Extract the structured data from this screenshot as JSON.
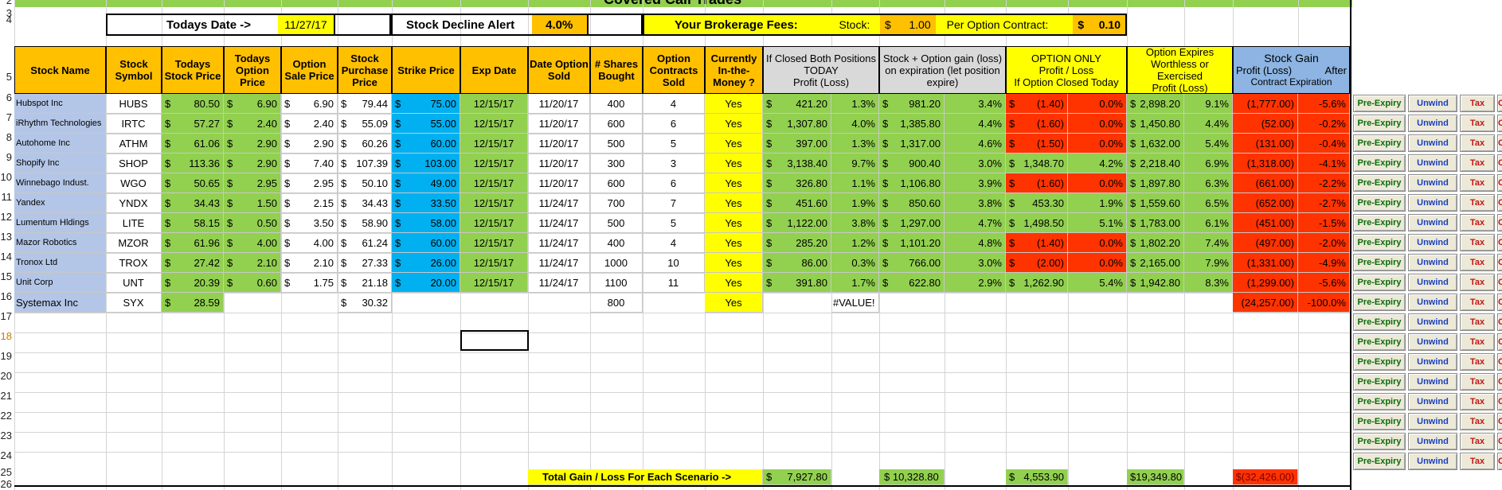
{
  "sheet_title": "Covered Call Trades",
  "top": {
    "todays_date_label": "Todays Date ->",
    "todays_date_value": "11/27/17",
    "decline_alert_label": "Stock Decline Alert",
    "decline_alert_value": "4.0%",
    "fees_label": "Your Brokerage Fees:",
    "stock_fee_label": "Stock:",
    "stock_fee_currency": "$",
    "stock_fee_value": "1.00",
    "option_fee_label": "Per Option Contract:",
    "option_fee_currency": "$",
    "option_fee_value": "0.10"
  },
  "row_numbers": [
    "2",
    "3",
    "4",
    "5",
    "6",
    "7",
    "8",
    "9",
    "10",
    "11",
    "12",
    "13",
    "14",
    "15",
    "16",
    "17",
    "18",
    "19",
    "20",
    "21",
    "22",
    "23",
    "24",
    "25",
    "26"
  ],
  "headers": {
    "stock_name": "Stock Name",
    "stock_symbol": "Stock Symbol",
    "todays_stock_price": "Todays Stock Price",
    "todays_option_price": "Todays Option Price",
    "option_sale_price": "Option Sale Price",
    "stock_purchase_price": "Stock Purchase Price",
    "strike_price": "Strike Price",
    "exp_date": "Exp Date",
    "date_option_sold": "Date Option Sold",
    "shares_bought": "# Shares Bought",
    "option_contracts_sold": "Option Contracts Sold",
    "currently_itm": "Currently In-the-Money ?",
    "closed_both_l1": "If Closed Both Positions",
    "closed_both_l2": "TODAY",
    "closed_both_l3": "Profit (Loss)",
    "stock_option_gain_l1": "Stock + Option gain (loss)",
    "stock_option_gain_l2": "on expiration (let position",
    "stock_option_gain_l3": "expire)",
    "option_only_l1": "OPTION ONLY",
    "option_only_l2": "Profit / Loss",
    "option_only_l3": "If Option Closed Today",
    "option_expires_l1": "Option Expires",
    "option_expires_l2": "Worthless or",
    "option_expires_l3": "Exercised",
    "option_expires_l4": "Profit (Loss)",
    "stock_gain_l1": "Stock Gain",
    "stock_gain_l2": "Profit (Loss)",
    "stock_gain_l2b": "After",
    "stock_gain_l3": "Contract Expiration"
  },
  "rows": [
    {
      "name": "Hubspot Inc",
      "sym": "HUBS",
      "tsp": "80.50",
      "top": "6.90",
      "osp": "6.90",
      "spp": "79.44",
      "strike": "75.00",
      "exp": "12/15/17",
      "sold": "11/20/17",
      "shares": "400",
      "contracts": "4",
      "itm": "Yes",
      "cb": "421.20",
      "cbp": "1.3%",
      "sog": "981.20",
      "sogp": "3.4%",
      "oo": "(1.40)",
      "oop": "0.0%",
      "oe": "2,898.20",
      "oep": "9.1%",
      "sg": "(1,777.00)",
      "sgp": "-5.6%",
      "oo_red": true
    },
    {
      "name": "iRhythm Technologies",
      "sym": "IRTC",
      "tsp": "57.27",
      "top": "2.40",
      "osp": "2.40",
      "spp": "55.09",
      "strike": "55.00",
      "exp": "12/15/17",
      "sold": "11/20/17",
      "shares": "600",
      "contracts": "6",
      "itm": "Yes",
      "cb": "1,307.80",
      "cbp": "4.0%",
      "sog": "1,385.80",
      "sogp": "4.4%",
      "oo": "(1.60)",
      "oop": "0.0%",
      "oe": "1,450.80",
      "oep": "4.4%",
      "sg": "(52.00)",
      "sgp": "-0.2%",
      "oo_red": true
    },
    {
      "name": "Autohome Inc",
      "sym": "ATHM",
      "tsp": "61.06",
      "top": "2.90",
      "osp": "2.90",
      "spp": "60.26",
      "strike": "60.00",
      "exp": "12/15/17",
      "sold": "11/20/17",
      "shares": "500",
      "contracts": "5",
      "itm": "Yes",
      "cb": "397.00",
      "cbp": "1.3%",
      "sog": "1,317.00",
      "sogp": "4.6%",
      "oo": "(1.50)",
      "oop": "0.0%",
      "oe": "1,632.00",
      "oep": "5.4%",
      "sg": "(131.00)",
      "sgp": "-0.4%",
      "oo_red": true
    },
    {
      "name": "Shopify Inc",
      "sym": "SHOP",
      "tsp": "113.36",
      "top": "2.90",
      "osp": "7.40",
      "spp": "107.39",
      "strike": "103.00",
      "exp": "12/15/17",
      "sold": "11/20/17",
      "shares": "300",
      "contracts": "3",
      "itm": "Yes",
      "cb": "3,138.40",
      "cbp": "9.7%",
      "sog": "900.40",
      "sogp": "3.0%",
      "oo": "1,348.70",
      "oop": "4.2%",
      "oe": "2,218.40",
      "oep": "6.9%",
      "sg": "(1,318.00)",
      "sgp": "-4.1%",
      "oo_red": false
    },
    {
      "name": "Winnebago Indust.",
      "sym": "WGO",
      "tsp": "50.65",
      "top": "2.95",
      "osp": "2.95",
      "spp": "50.10",
      "strike": "49.00",
      "exp": "12/15/17",
      "sold": "11/20/17",
      "shares": "600",
      "contracts": "6",
      "itm": "Yes",
      "cb": "326.80",
      "cbp": "1.1%",
      "sog": "1,106.80",
      "sogp": "3.9%",
      "oo": "(1.60)",
      "oop": "0.0%",
      "oe": "1,897.80",
      "oep": "6.3%",
      "sg": "(661.00)",
      "sgp": "-2.2%",
      "oo_red": true
    },
    {
      "name": "Yandex",
      "sym": "YNDX",
      "tsp": "34.43",
      "top": "1.50",
      "osp": "2.15",
      "spp": "34.43",
      "strike": "33.50",
      "exp": "12/15/17",
      "sold": "11/24/17",
      "shares": "700",
      "contracts": "7",
      "itm": "Yes",
      "cb": "451.60",
      "cbp": "1.9%",
      "sog": "850.60",
      "sogp": "3.8%",
      "oo": "453.30",
      "oop": "1.9%",
      "oe": "1,559.60",
      "oep": "6.5%",
      "sg": "(652.00)",
      "sgp": "-2.7%",
      "oo_red": false
    },
    {
      "name": "Lumentum Hldings",
      "sym": "LITE",
      "tsp": "58.15",
      "top": "0.50",
      "osp": "3.50",
      "spp": "58.90",
      "strike": "58.00",
      "exp": "12/15/17",
      "sold": "11/24/17",
      "shares": "500",
      "contracts": "5",
      "itm": "Yes",
      "cb": "1,122.00",
      "cbp": "3.8%",
      "sog": "1,297.00",
      "sogp": "4.7%",
      "oo": "1,498.50",
      "oop": "5.1%",
      "oe": "1,783.00",
      "oep": "6.1%",
      "sg": "(451.00)",
      "sgp": "-1.5%",
      "oo_red": false
    },
    {
      "name": "Mazor Robotics",
      "sym": "MZOR",
      "tsp": "61.96",
      "top": "4.00",
      "osp": "4.00",
      "spp": "61.24",
      "strike": "60.00",
      "exp": "12/15/17",
      "sold": "11/24/17",
      "shares": "400",
      "contracts": "4",
      "itm": "Yes",
      "cb": "285.20",
      "cbp": "1.2%",
      "sog": "1,101.20",
      "sogp": "4.8%",
      "oo": "(1.40)",
      "oop": "0.0%",
      "oe": "1,802.20",
      "oep": "7.4%",
      "sg": "(497.00)",
      "sgp": "-2.0%",
      "oo_red": true
    },
    {
      "name": "Tronox Ltd",
      "sym": "TROX",
      "tsp": "27.42",
      "top": "2.10",
      "osp": "2.10",
      "spp": "27.33",
      "strike": "26.00",
      "exp": "12/15/17",
      "sold": "11/24/17",
      "shares": "1000",
      "contracts": "10",
      "itm": "Yes",
      "cb": "86.00",
      "cbp": "0.3%",
      "sog": "766.00",
      "sogp": "3.0%",
      "oo": "(2.00)",
      "oop": "0.0%",
      "oe": "2,165.00",
      "oep": "7.9%",
      "sg": "(1,331.00)",
      "sgp": "-4.9%",
      "oo_red": true
    },
    {
      "name": "Unit Corp",
      "sym": "UNT",
      "tsp": "20.39",
      "top": "0.60",
      "osp": "1.75",
      "spp": "21.18",
      "strike": "20.00",
      "exp": "12/15/17",
      "sold": "11/24/17",
      "shares": "1100",
      "contracts": "11",
      "itm": "Yes",
      "cb": "391.80",
      "cbp": "1.7%",
      "sog": "622.80",
      "sogp": "2.9%",
      "oo": "1,262.90",
      "oop": "5.4%",
      "oe": "1,942.80",
      "oep": "8.3%",
      "sg": "(1,299.00)",
      "sgp": "-5.6%",
      "oo_red": false
    }
  ],
  "partial_row": {
    "name": "Systemax Inc",
    "sym": "SYX",
    "tsp": "28.59",
    "spp": "30.32",
    "shares": "800",
    "itm": "Yes",
    "value_error": "#VALUE!",
    "sg": "(24,257.00)",
    "sgp": "-100.0%"
  },
  "totals": {
    "label": "Total   Gain / Loss   For Each Scenario ->",
    "closed_both": "7,927.80",
    "stock_option": "$ 10,328.80",
    "option_only": "4,553.90",
    "option_expires": "$19,349.80",
    "stock_gain": "$(32,426.00)"
  },
  "currency": "$",
  "buttons": {
    "pre": "Pre-Expiry",
    "unwind": "Unwind",
    "tax": "Tax",
    "cut": "C"
  },
  "colors": {
    "orange": "#ffc000",
    "green": "#92d050",
    "blue_strike": "#00b0f0",
    "light_blue": "#b4c6e7",
    "yellow": "#ffff00",
    "red": "#ff3300",
    "gray": "#d9d9d9",
    "stock_gain_blue": "#8db4e2"
  }
}
